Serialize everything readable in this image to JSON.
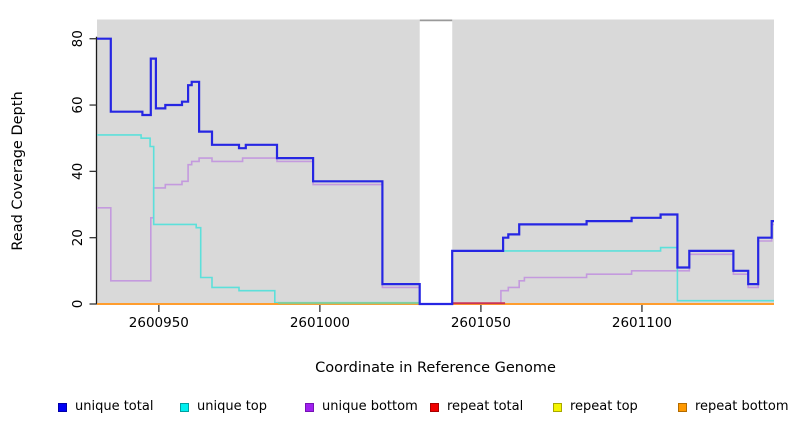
{
  "axes": {
    "ylabel": "Read Coverage Depth",
    "xlabel": "Coordinate in Reference Genome",
    "y_ticks": [
      {
        "value": 0,
        "label": "0"
      },
      {
        "value": 20,
        "label": "20"
      },
      {
        "value": 40,
        "label": "40"
      },
      {
        "value": 60,
        "label": "60"
      },
      {
        "value": 80,
        "label": "80"
      }
    ],
    "x_ticks": [
      {
        "value": 2600950,
        "label": "2600950"
      },
      {
        "value": 2601000,
        "label": "2601000"
      },
      {
        "value": 2601050,
        "label": "2601050"
      },
      {
        "value": 2601100,
        "label": "2601100"
      }
    ]
  },
  "chart_data": {
    "type": "line",
    "title": "",
    "xlabel": "Coordinate in Reference Genome",
    "ylabel": "Read Coverage Depth",
    "xlim": [
      2600930.8,
      2601141
    ],
    "ylim": [
      0,
      85.8
    ],
    "grid": false,
    "plot_background": "#d9d9d9",
    "page_background": "#ffffff",
    "no_data_gap": {
      "x": [
        2601031,
        2601041.1
      ],
      "fill": "#ffffff",
      "cap_color": "#9a9a9a"
    },
    "series": [
      {
        "name": "repeat total",
        "color": "#cc3352",
        "width": 2,
        "points": [
          [
            2600930.8,
            0
          ]
        ],
        "end_x": 2601141
      },
      {
        "name": "repeat top",
        "color": "#e8e800",
        "width": 1.6,
        "points": [
          [
            2600930.8,
            0
          ]
        ],
        "end_x": 2601141
      },
      {
        "name": "unique bottom",
        "color": "#c49ade",
        "width": 1.6,
        "points": [
          [
            2600930.8,
            29
          ],
          [
            2600935.1,
            7
          ],
          [
            2600947.5,
            26
          ],
          [
            2600948.4,
            35
          ],
          [
            2600952,
            36
          ],
          [
            2600957.2,
            37
          ],
          [
            2600959.1,
            42
          ],
          [
            2600960.2,
            43
          ],
          [
            2600962.5,
            44
          ],
          [
            2600966.5,
            43
          ],
          [
            2600976,
            44
          ],
          [
            2600986.7,
            43
          ],
          [
            2600997.9,
            36
          ],
          [
            2601019.4,
            5
          ],
          [
            2601031,
            0
          ],
          [
            2601056.2,
            4
          ],
          [
            2601058.5,
            5
          ],
          [
            2601061.9,
            7
          ],
          [
            2601063.5,
            8
          ],
          [
            2601082.8,
            9
          ],
          [
            2601096.8,
            10
          ],
          [
            2601114.7,
            15
          ],
          [
            2601128.4,
            9
          ],
          [
            2601133,
            5
          ],
          [
            2601136.1,
            19
          ],
          [
            2601140.3,
            24
          ]
        ],
        "end_x": 2601141
      },
      {
        "name": "unique top",
        "color": "#5ce0da",
        "width": 1.6,
        "points": [
          [
            2600930.8,
            51
          ],
          [
            2600944.5,
            50
          ],
          [
            2600947.3,
            47.5
          ],
          [
            2600948.4,
            24
          ],
          [
            2600961.6,
            23
          ],
          [
            2600963,
            8
          ],
          [
            2600966.5,
            5
          ],
          [
            2600974.9,
            4
          ],
          [
            2600986,
            0.4
          ],
          [
            2601031,
            0
          ],
          [
            2601041.1,
            16
          ],
          [
            2601105.8,
            17
          ],
          [
            2601111,
            1
          ]
        ],
        "end_x": 2601141
      },
      {
        "name": "repeat bottom",
        "color": "#ff9d2e",
        "width": 2,
        "points": [
          [
            2600930.8,
            0
          ]
        ],
        "end_x": 2601141
      },
      {
        "name": "unique total",
        "color": "#2626e3",
        "width": 2.2,
        "points": [
          [
            2600930.8,
            80
          ],
          [
            2600935.1,
            58
          ],
          [
            2600944.9,
            57
          ],
          [
            2600947.5,
            74
          ],
          [
            2600949.1,
            59
          ],
          [
            2600952,
            60
          ],
          [
            2600957.2,
            61
          ],
          [
            2600959.1,
            66
          ],
          [
            2600960.2,
            67
          ],
          [
            2600962.5,
            52
          ],
          [
            2600966.5,
            48
          ],
          [
            2600974.9,
            47
          ],
          [
            2600977,
            48
          ],
          [
            2600986.7,
            44
          ],
          [
            2600997.9,
            37
          ],
          [
            2601019.4,
            6
          ],
          [
            2601031,
            0
          ],
          [
            2601041.1,
            16
          ],
          [
            2601056.9,
            20
          ],
          [
            2601058.5,
            21
          ],
          [
            2601061.9,
            24
          ],
          [
            2601082.8,
            25
          ],
          [
            2601096.8,
            26
          ],
          [
            2601105.8,
            27
          ],
          [
            2601111,
            11
          ],
          [
            2601114.7,
            16
          ],
          [
            2601128.4,
            10
          ],
          [
            2601133,
            6
          ],
          [
            2601136.1,
            20
          ],
          [
            2601140.3,
            25
          ]
        ],
        "end_x": 2601141
      }
    ],
    "baseline_overlays": [
      {
        "x": [
          2600987,
          2601031
        ],
        "color": "#8cc98c",
        "desc": "blended low-coverage line visible at zero"
      },
      {
        "x": [
          2601041.1,
          2601057.5
        ],
        "color": "#cc3352",
        "desc": "repeat total visible at zero"
      }
    ]
  },
  "legend": {
    "items": [
      {
        "label": "unique total",
        "fill": "#0000f5",
        "border": "#0000a8"
      },
      {
        "label": "unique top",
        "fill": "#00f0f0",
        "border": "#00a0a0"
      },
      {
        "label": "unique bottom",
        "fill": "#a020f0",
        "border": "#7612b4"
      },
      {
        "label": "repeat total",
        "fill": "#f00000",
        "border": "#a80000"
      },
      {
        "label": "repeat top",
        "fill": "#f5f500",
        "border": "#a8a800"
      },
      {
        "label": "repeat bottom",
        "fill": "#ff9900",
        "border": "#b36b00"
      }
    ]
  }
}
